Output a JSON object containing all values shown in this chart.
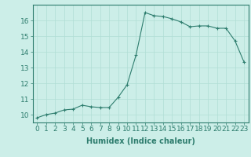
{
  "x": [
    0,
    1,
    2,
    3,
    4,
    5,
    6,
    7,
    8,
    9,
    10,
    11,
    12,
    13,
    14,
    15,
    16,
    17,
    18,
    19,
    20,
    21,
    22,
    23
  ],
  "y": [
    9.8,
    10.0,
    10.1,
    10.3,
    10.35,
    10.6,
    10.5,
    10.45,
    10.45,
    11.1,
    11.9,
    13.8,
    16.5,
    16.3,
    16.25,
    16.1,
    15.9,
    15.6,
    15.65,
    15.65,
    15.5,
    15.5,
    14.7,
    13.35
  ],
  "line_color": "#2e7d6e",
  "marker": "+",
  "marker_size": 3,
  "bg_color": "#cceee8",
  "grid_color": "#b0ddd5",
  "axis_color": "#2e7d6e",
  "xlabel": "Humidex (Indice chaleur)",
  "xlim": [
    -0.5,
    23.5
  ],
  "ylim": [
    9.5,
    17.0
  ],
  "yticks": [
    10,
    11,
    12,
    13,
    14,
    15,
    16
  ],
  "xticks": [
    0,
    1,
    2,
    3,
    4,
    5,
    6,
    7,
    8,
    9,
    10,
    11,
    12,
    13,
    14,
    15,
    16,
    17,
    18,
    19,
    20,
    21,
    22,
    23
  ],
  "font_size": 6.5,
  "label_font_size": 7
}
